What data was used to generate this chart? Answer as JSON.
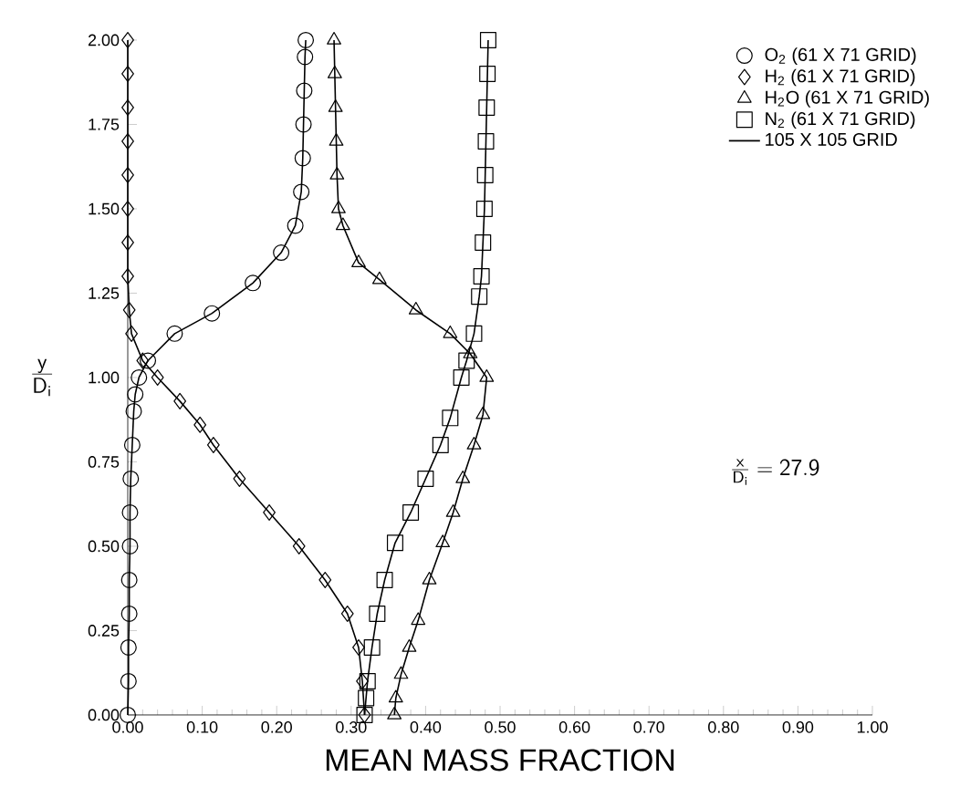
{
  "chart_data": {
    "type": "line",
    "xlabel": "MEAN MASS FRACTION",
    "ylabel": "\\frac{\\mathsf{y}}{\\mathsf{D}_{\\mathsf{i}}}",
    "annotations": [
      "\\frac{\\mathsf{x}}{\\mathsf{D}_{\\mathsf{i}}} = \\mathsf{27.9}"
    ],
    "xlim": [
      0,
      1
    ],
    "ylim": [
      0,
      2
    ],
    "xticks": [
      {
        "value": 0,
        "label": "0.00"
      },
      {
        "value": 0.1,
        "label": "0.10"
      },
      {
        "value": 0.2,
        "label": "0.20"
      },
      {
        "value": 0.3,
        "label": "0.30"
      },
      {
        "value": 0.4,
        "label": "0.40"
      },
      {
        "value": 0.5,
        "label": "0.50"
      },
      {
        "value": 0.6,
        "label": "0.60"
      },
      {
        "value": 0.7,
        "label": "0.70"
      },
      {
        "value": 0.8,
        "label": "0.80"
      },
      {
        "value": 0.9,
        "label": "0.90"
      },
      {
        "value": 1,
        "label": "1.00"
      }
    ],
    "yticks": [
      {
        "value": 0,
        "label": "0.00"
      },
      {
        "value": 0.25,
        "label": "0.25"
      },
      {
        "value": 0.5,
        "label": "0.50"
      },
      {
        "value": 0.75,
        "label": "0.75"
      },
      {
        "value": 1,
        "label": "1.00"
      },
      {
        "value": 1.25,
        "label": "1.25"
      },
      {
        "value": 1.5,
        "label": "1.50"
      },
      {
        "value": 1.75,
        "label": "1.75"
      },
      {
        "value": 2,
        "label": "2.00"
      }
    ],
    "grid": false,
    "legend": "top right",
    "series": [
      {
        "name": "O$_{2}$ (61 X 71 GRID)",
        "color": "#000000",
        "marker": "circle",
        "line_style": "solid",
        "x": [
          0,
          0.001,
          0.001,
          0.002,
          0.002,
          0.003,
          0.003,
          0.004,
          0.006,
          0.008,
          0.01,
          0.015,
          0.027,
          0.063,
          0.113,
          0.168,
          0.206,
          0.225,
          0.233,
          0.235,
          0.236,
          0.237,
          0.238,
          0.239
        ],
        "values": [
          0,
          0.1,
          0.2,
          0.3,
          0.4,
          0.5,
          0.6,
          0.7,
          0.8,
          0.9,
          0.95,
          1.0,
          1.05,
          1.13,
          1.19,
          1.28,
          1.37,
          1.45,
          1.55,
          1.65,
          1.75,
          1.85,
          1.95,
          2.0
        ]
      },
      {
        "name": "H$_{2}$ (61 X 71 GRID)",
        "color": "#000000",
        "marker": "diamond",
        "line_style": "solid",
        "x": [
          0,
          0,
          0,
          0,
          0,
          0,
          0,
          0,
          0.002,
          0.005,
          0.02,
          0.04,
          0.07,
          0.097,
          0.115,
          0.15,
          0.19,
          0.23,
          0.265,
          0.295,
          0.31,
          0.315,
          0.318
        ],
        "values": [
          2.0,
          1.9,
          1.8,
          1.7,
          1.6,
          1.5,
          1.4,
          1.3,
          1.2,
          1.13,
          1.05,
          1.0,
          0.93,
          0.86,
          0.8,
          0.7,
          0.6,
          0.5,
          0.4,
          0.3,
          0.2,
          0.1,
          0
        ]
      },
      {
        "name": "H$_{2}$O (61 X 71 GRID)",
        "color": "#000000",
        "marker": "triangle",
        "line_style": "solid",
        "x": [
          0.277,
          0.278,
          0.279,
          0.28,
          0.281,
          0.283,
          0.289,
          0.31,
          0.338,
          0.387,
          0.433,
          0.46,
          0.482,
          0.477,
          0.465,
          0.45,
          0.437,
          0.423,
          0.405,
          0.39,
          0.378,
          0.367,
          0.36,
          0.358
        ],
        "values": [
          2.0,
          1.9,
          1.8,
          1.7,
          1.6,
          1.5,
          1.45,
          1.34,
          1.29,
          1.2,
          1.13,
          1.07,
          1.0,
          0.89,
          0.8,
          0.7,
          0.6,
          0.51,
          0.4,
          0.28,
          0.2,
          0.12,
          0.05,
          0
        ]
      },
      {
        "name": "N$_{2}$ (61 X 71 GRID)",
        "color": "#000000",
        "marker": "square",
        "line_style": "solid",
        "x": [
          0.484,
          0.483,
          0.482,
          0.481,
          0.48,
          0.479,
          0.477,
          0.475,
          0.472,
          0.465,
          0.455,
          0.448,
          0.433,
          0.42,
          0.4,
          0.38,
          0.359,
          0.345,
          0.335,
          0.328,
          0.322,
          0.32,
          0.318
        ],
        "values": [
          2.0,
          1.9,
          1.8,
          1.7,
          1.6,
          1.5,
          1.4,
          1.3,
          1.24,
          1.13,
          1.05,
          1.0,
          0.88,
          0.8,
          0.7,
          0.6,
          0.51,
          0.4,
          0.3,
          0.2,
          0.1,
          0.05,
          0
        ]
      },
      {
        "name": "105 X 105 GRID",
        "color": "#000000",
        "marker": "none",
        "line_style": "solid"
      }
    ]
  }
}
